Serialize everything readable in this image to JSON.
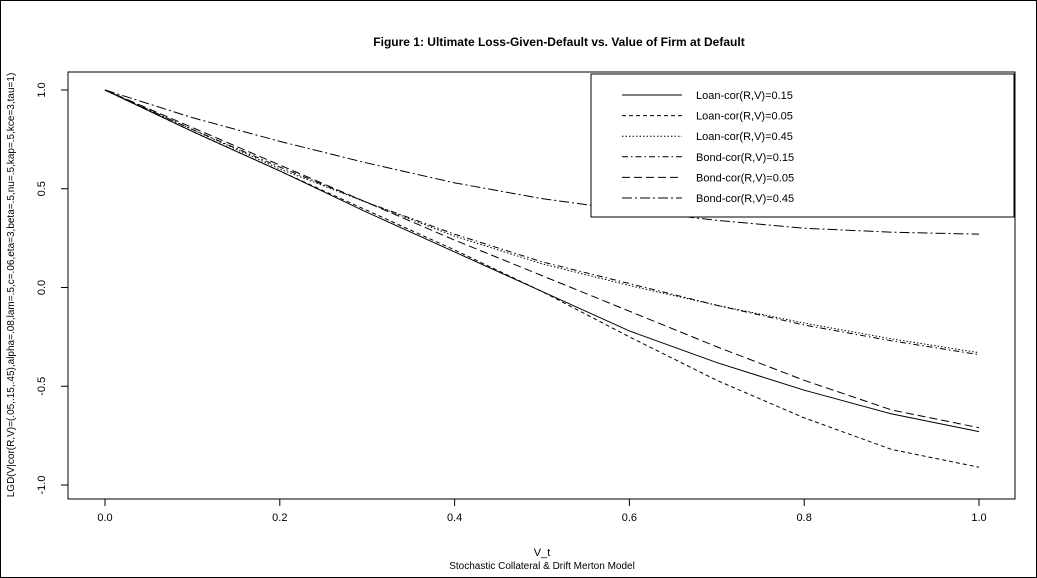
{
  "chart_data": {
    "type": "line",
    "title": "Figure 1: Ultimate Loss-Given-Default vs. Value of Firm at Default",
    "xlabel": "V_t",
    "subtitle": "Stochastic Collateral & Drift Merton Model",
    "ylabel": "LGD(V|cor(R,V)=(.05,.15,.45),alpha=.08,lam=.5,c=.06,eta=3,beta=.5,nu=.5,kap=.5,kce=3,tau=1)",
    "xlim": [
      0.0,
      1.0
    ],
    "ylim": [
      -1.0,
      1.0
    ],
    "x_ticks": [
      "0.0",
      "0.2",
      "0.4",
      "0.6",
      "0.8",
      "1.0"
    ],
    "y_ticks": [
      "-1.0",
      "-0.5",
      "0.0",
      "0.5",
      "1.0"
    ],
    "grid": false,
    "legend_position": "top-right",
    "x": [
      0.0,
      0.1,
      0.2,
      0.3,
      0.4,
      0.5,
      0.6,
      0.7,
      0.8,
      0.9,
      1.0
    ],
    "series": [
      {
        "name": "Loan-cor(R,V)=0.15",
        "dash": "",
        "values": [
          1.0,
          0.79,
          0.59,
          0.38,
          0.18,
          -0.02,
          -0.22,
          -0.38,
          -0.52,
          -0.64,
          -0.73
        ]
      },
      {
        "name": "Loan-cor(R,V)=0.05",
        "dash": "4,3",
        "values": [
          1.0,
          0.79,
          0.59,
          0.39,
          0.19,
          -0.02,
          -0.25,
          -0.47,
          -0.66,
          -0.82,
          -0.91
        ]
      },
      {
        "name": "Loan-cor(R,V)=0.45",
        "dash": "1.5,2",
        "values": [
          1.0,
          0.8,
          0.6,
          0.43,
          0.26,
          0.12,
          0.01,
          -0.09,
          -0.18,
          -0.26,
          -0.33
        ]
      },
      {
        "name": "Bond-cor(R,V)=0.15",
        "dash": "6,3,1.5,3",
        "values": [
          1.0,
          0.8,
          0.61,
          0.43,
          0.27,
          0.13,
          0.02,
          -0.09,
          -0.19,
          -0.27,
          -0.34
        ]
      },
      {
        "name": "Bond-cor(R,V)=0.05",
        "dash": "8,4",
        "values": [
          1.0,
          0.81,
          0.62,
          0.43,
          0.24,
          0.06,
          -0.12,
          -0.3,
          -0.47,
          -0.62,
          -0.71
        ]
      },
      {
        "name": "Bond-cor(R,V)=0.45",
        "dash": "10,3,2,3",
        "values": [
          1.0,
          0.86,
          0.74,
          0.63,
          0.53,
          0.45,
          0.39,
          0.34,
          0.3,
          0.28,
          0.27
        ]
      }
    ]
  }
}
